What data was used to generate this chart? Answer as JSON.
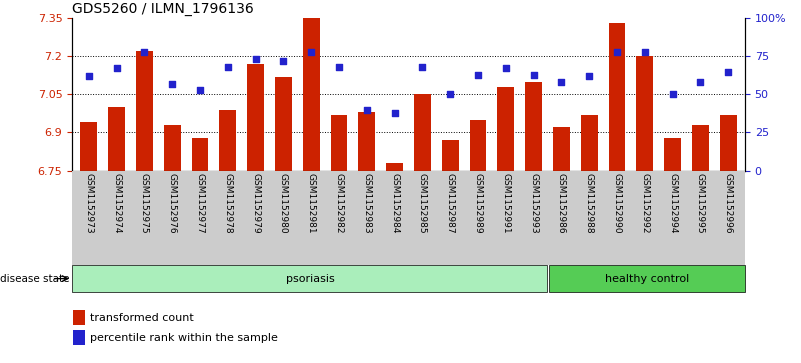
{
  "title": "GDS5260 / ILMN_1796136",
  "samples": [
    "GSM1152973",
    "GSM1152974",
    "GSM1152975",
    "GSM1152976",
    "GSM1152977",
    "GSM1152978",
    "GSM1152979",
    "GSM1152980",
    "GSM1152981",
    "GSM1152982",
    "GSM1152983",
    "GSM1152984",
    "GSM1152985",
    "GSM1152987",
    "GSM1152989",
    "GSM1152991",
    "GSM1152993",
    "GSM1152986",
    "GSM1152988",
    "GSM1152990",
    "GSM1152992",
    "GSM1152994",
    "GSM1152995",
    "GSM1152996"
  ],
  "bar_values": [
    6.94,
    7.0,
    7.22,
    6.93,
    6.88,
    6.99,
    7.17,
    7.12,
    7.35,
    6.97,
    6.98,
    6.78,
    7.05,
    6.87,
    6.95,
    7.08,
    7.1,
    6.92,
    6.97,
    7.33,
    7.2,
    6.88,
    6.93,
    6.97
  ],
  "percentile_values": [
    62,
    67,
    78,
    57,
    53,
    68,
    73,
    72,
    78,
    68,
    40,
    38,
    68,
    50,
    63,
    67,
    63,
    58,
    62,
    78,
    78,
    50,
    58,
    65
  ],
  "psoriasis_count": 17,
  "healthy_count": 7,
  "ylim_left": [
    6.75,
    7.35
  ],
  "ylim_right": [
    0,
    100
  ],
  "yticks_left": [
    6.75,
    6.9,
    7.05,
    7.2,
    7.35
  ],
  "ytick_labels_left": [
    "6.75",
    "6.9",
    "7.05",
    "7.2",
    "7.35"
  ],
  "yticks_right": [
    0,
    25,
    50,
    75,
    100
  ],
  "ytick_labels_right": [
    "0",
    "25",
    "50",
    "75",
    "100%"
  ],
  "hline_values": [
    6.9,
    7.05,
    7.2
  ],
  "bar_color": "#CC2200",
  "dot_color": "#2222CC",
  "psoriasis_color": "#AAEEBB",
  "healthy_color": "#55CC55",
  "background_color": "#FFFFFF",
  "plot_bg_color": "#FFFFFF",
  "xlabel_color": "#CC2200",
  "ylabel_right_color": "#2222CC",
  "xlabel_bg_color": "#CCCCCC"
}
